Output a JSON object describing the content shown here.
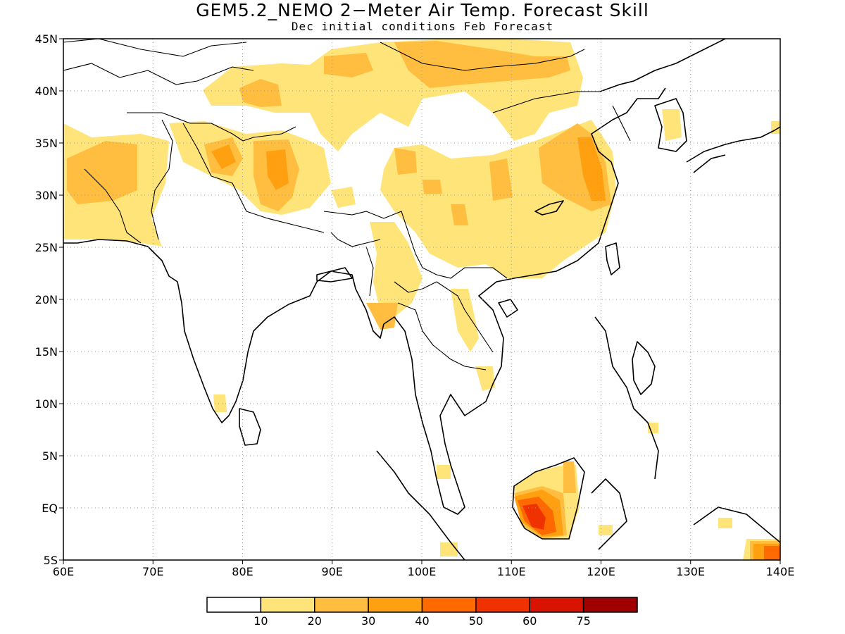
{
  "title": "GEM5.2_NEMO 2−Meter Air Temp. Forecast Skill",
  "subtitle": "Dec initial conditions  Feb Forecast",
  "map": {
    "lon_range": [
      60,
      140
    ],
    "lat_range": [
      -5,
      45
    ],
    "lon_ticks": [
      {
        "value": 60,
        "label": "60E"
      },
      {
        "value": 70,
        "label": "70E"
      },
      {
        "value": 80,
        "label": "80E"
      },
      {
        "value": 90,
        "label": "90E"
      },
      {
        "value": 100,
        "label": "100E"
      },
      {
        "value": 110,
        "label": "110E"
      },
      {
        "value": 120,
        "label": "120E"
      },
      {
        "value": 130,
        "label": "130E"
      },
      {
        "value": 140,
        "label": "140E"
      }
    ],
    "lat_ticks": [
      {
        "value": 45,
        "label": "45N"
      },
      {
        "value": 40,
        "label": "40N"
      },
      {
        "value": 35,
        "label": "35N"
      },
      {
        "value": 30,
        "label": "30N"
      },
      {
        "value": 25,
        "label": "25N"
      },
      {
        "value": 20,
        "label": "20N"
      },
      {
        "value": 15,
        "label": "15N"
      },
      {
        "value": 10,
        "label": "10N"
      },
      {
        "value": 5,
        "label": "5N"
      },
      {
        "value": 0,
        "label": "EQ"
      },
      {
        "value": -5,
        "label": "5S"
      }
    ]
  },
  "colorbar": {
    "colors": [
      "#ffffff",
      "#ffe47a",
      "#ffbe40",
      "#ffa010",
      "#ff6a00",
      "#f03200",
      "#d81400",
      "#a00000"
    ],
    "labels": [
      "10",
      "20",
      "30",
      "40",
      "50",
      "60",
      "75"
    ]
  }
}
